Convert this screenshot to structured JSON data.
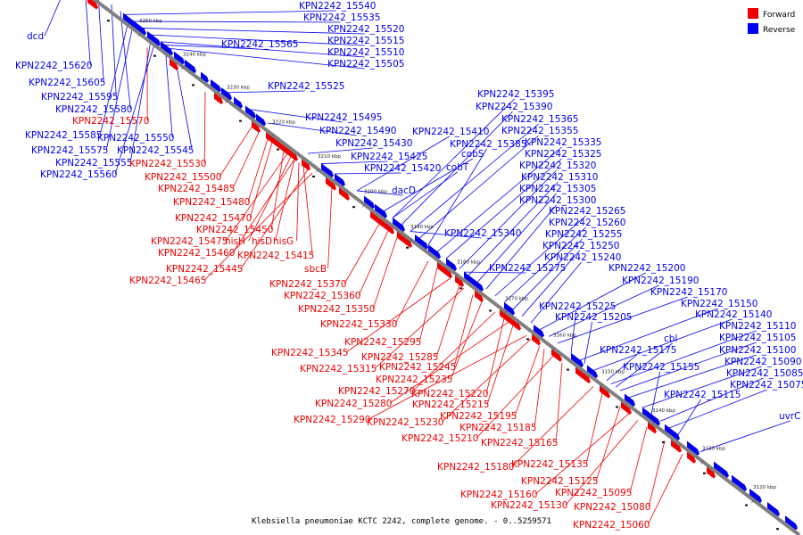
{
  "caption": "Klebsiella pneumoniae KCTC 2242, complete genome. - 0..5259571",
  "legend": [
    {
      "label": "Forward",
      "color": "#ee0000"
    },
    {
      "label": "Reverse",
      "color": "#0000ee"
    }
  ],
  "colors": {
    "forward": "#ee0000",
    "reverse": "#0000ee",
    "axis": "#808080",
    "other": "#111111"
  },
  "kbp_ticks": [
    "3250 kbp",
    "3240 kbp",
    "3230 kbp",
    "3220 kbp",
    "3210 kbp",
    "3200 kbp",
    "3190 kbp",
    "3180 kbp",
    "3170 kbp",
    "3160 kbp",
    "3150 kbp",
    "3140 kbp",
    "3130 kbp",
    "3120 kbp"
  ],
  "labels": [
    {
      "text": "dcd",
      "strand": "reverse"
    },
    {
      "text": "KPN2242_15540",
      "strand": "reverse"
    },
    {
      "text": "KPN2242_15535",
      "strand": "reverse"
    },
    {
      "text": "KPN2242_15520",
      "strand": "reverse"
    },
    {
      "text": "KPN2242_15565",
      "strand": "reverse"
    },
    {
      "text": "KPN2242_15515",
      "strand": "reverse"
    },
    {
      "text": "KPN2242_15510",
      "strand": "reverse"
    },
    {
      "text": "KPN2242_15505",
      "strand": "reverse"
    },
    {
      "text": "KPN2242_15620",
      "strand": "reverse"
    },
    {
      "text": "KPN2242_15605",
      "strand": "reverse"
    },
    {
      "text": "KPN2242_15525",
      "strand": "reverse"
    },
    {
      "text": "KPN2242_15595",
      "strand": "reverse"
    },
    {
      "text": "KPN2242_15580",
      "strand": "reverse"
    },
    {
      "text": "KPN2242_15570",
      "strand": "forward"
    },
    {
      "text": "KPN2242_15495",
      "strand": "reverse"
    },
    {
      "text": "KPN2242_15490",
      "strand": "reverse"
    },
    {
      "text": "KPN2242_15585",
      "strand": "reverse"
    },
    {
      "text": "KPN2242_15550",
      "strand": "reverse"
    },
    {
      "text": "KPN2242_15575",
      "strand": "reverse"
    },
    {
      "text": "KPN2242_15545",
      "strand": "reverse"
    },
    {
      "text": "KPN2242_15555",
      "strand": "reverse"
    },
    {
      "text": "KPN2242_15530",
      "strand": "forward"
    },
    {
      "text": "KPN2242_15560",
      "strand": "reverse"
    },
    {
      "text": "KPN2242_15500",
      "strand": "forward"
    },
    {
      "text": "KPN2242_15485",
      "strand": "forward"
    },
    {
      "text": "KPN2242_15480",
      "strand": "forward"
    },
    {
      "text": "KPN2242_15470",
      "strand": "forward"
    },
    {
      "text": "KPN2242_15450",
      "strand": "forward"
    },
    {
      "text": "KPN2242_15475",
      "strand": "forward"
    },
    {
      "text": "hisH",
      "strand": "forward"
    },
    {
      "text": "hisD",
      "strand": "forward"
    },
    {
      "text": "hisG",
      "strand": "forward"
    },
    {
      "text": "KPN2242_15460",
      "strand": "forward"
    },
    {
      "text": "KPN2242_15415",
      "strand": "forward"
    },
    {
      "text": "KPN2242_15445",
      "strand": "forward"
    },
    {
      "text": "KPN2242_15465",
      "strand": "forward"
    },
    {
      "text": "sbcB",
      "strand": "forward"
    },
    {
      "text": "KPN2242_15430",
      "strand": "reverse"
    },
    {
      "text": "KPN2242_15410",
      "strand": "reverse"
    },
    {
      "text": "KPN2242_15425",
      "strand": "reverse"
    },
    {
      "text": "KPN2242_15420",
      "strand": "reverse"
    },
    {
      "text": "cobS",
      "strand": "reverse"
    },
    {
      "text": "cobT",
      "strand": "reverse"
    },
    {
      "text": "dacD",
      "strand": "reverse"
    },
    {
      "text": "KPN2242_15395",
      "strand": "reverse"
    },
    {
      "text": "KPN2242_15390",
      "strand": "reverse"
    },
    {
      "text": "KPN2242_15365",
      "strand": "reverse"
    },
    {
      "text": "KPN2242_15355",
      "strand": "reverse"
    },
    {
      "text": "KPN2242_15385",
      "strand": "reverse"
    },
    {
      "text": "KPN2242_15335",
      "strand": "reverse"
    },
    {
      "text": "KPN2242_15325",
      "strand": "reverse"
    },
    {
      "text": "KPN2242_15320",
      "strand": "reverse"
    },
    {
      "text": "KPN2242_15310",
      "strand": "reverse"
    },
    {
      "text": "KPN2242_15305",
      "strand": "reverse"
    },
    {
      "text": "KPN2242_15300",
      "strand": "reverse"
    },
    {
      "text": "KPN2242_15265",
      "strand": "reverse"
    },
    {
      "text": "KPN2242_15260",
      "strand": "reverse"
    },
    {
      "text": "KPN2242_15340",
      "strand": "reverse"
    },
    {
      "text": "KPN2242_15255",
      "strand": "reverse"
    },
    {
      "text": "KPN2242_15250",
      "strand": "reverse"
    },
    {
      "text": "KPN2242_15240",
      "strand": "reverse"
    },
    {
      "text": "KPN2242_15275",
      "strand": "reverse"
    },
    {
      "text": "KPN2242_15200",
      "strand": "reverse"
    },
    {
      "text": "KPN2242_15190",
      "strand": "reverse"
    },
    {
      "text": "KPN2242_15170",
      "strand": "reverse"
    },
    {
      "text": "KPN2242_15370",
      "strand": "forward"
    },
    {
      "text": "KPN2242_15360",
      "strand": "forward"
    },
    {
      "text": "KPN2242_15350",
      "strand": "forward"
    },
    {
      "text": "KPN2242_15225",
      "strand": "reverse"
    },
    {
      "text": "KPN2242_15150",
      "strand": "reverse"
    },
    {
      "text": "KPN2242_15205",
      "strand": "reverse"
    },
    {
      "text": "KPN2242_15140",
      "strand": "reverse"
    },
    {
      "text": "KPN2242_15330",
      "strand": "forward"
    },
    {
      "text": "KPN2242_15110",
      "strand": "reverse"
    },
    {
      "text": "cbl",
      "strand": "reverse"
    },
    {
      "text": "KPN2242_15105",
      "strand": "reverse"
    },
    {
      "text": "KPN2242_15295",
      "strand": "forward"
    },
    {
      "text": "KPN2242_15175",
      "strand": "reverse"
    },
    {
      "text": "KPN2242_15100",
      "strand": "reverse"
    },
    {
      "text": "KPN2242_15345",
      "strand": "forward"
    },
    {
      "text": "KPN2242_15285",
      "strand": "forward"
    },
    {
      "text": "KPN2242_15090",
      "strand": "reverse"
    },
    {
      "text": "KPN2242_15315",
      "strand": "forward"
    },
    {
      "text": "KPN2242_15245",
      "strand": "forward"
    },
    {
      "text": "KPN2242_15155",
      "strand": "reverse"
    },
    {
      "text": "KPN2242_15085",
      "strand": "reverse"
    },
    {
      "text": "KPN2242_15235",
      "strand": "forward"
    },
    {
      "text": "KPN2242_15075",
      "strand": "reverse"
    },
    {
      "text": "KPN2242_15270",
      "strand": "forward"
    },
    {
      "text": "KPN2242_15220",
      "strand": "forward"
    },
    {
      "text": "KPN2242_15115",
      "strand": "reverse"
    },
    {
      "text": "KPN2242_15280",
      "strand": "forward"
    },
    {
      "text": "KPN2242_15215",
      "strand": "forward"
    },
    {
      "text": "uvrC",
      "strand": "reverse"
    },
    {
      "text": "KPN2242_15290",
      "strand": "forward"
    },
    {
      "text": "KPN2242_15230",
      "strand": "forward"
    },
    {
      "text": "KPN2242_15195",
      "strand": "forward"
    },
    {
      "text": "KPN2242_15185",
      "strand": "forward"
    },
    {
      "text": "KPN2242_15210",
      "strand": "forward"
    },
    {
      "text": "KPN2242_15165",
      "strand": "forward"
    },
    {
      "text": "KPN2242_15180",
      "strand": "forward"
    },
    {
      "text": "KPN2242_15135",
      "strand": "forward"
    },
    {
      "text": "KPN2242_15125",
      "strand": "forward"
    },
    {
      "text": "KPN2242_15160",
      "strand": "forward"
    },
    {
      "text": "KPN2242_15130",
      "strand": "forward"
    },
    {
      "text": "KPN2242_15095",
      "strand": "forward"
    },
    {
      "text": "KPN2242_15080",
      "strand": "forward"
    },
    {
      "text": "KPN2242_15060",
      "strand": "forward"
    }
  ]
}
